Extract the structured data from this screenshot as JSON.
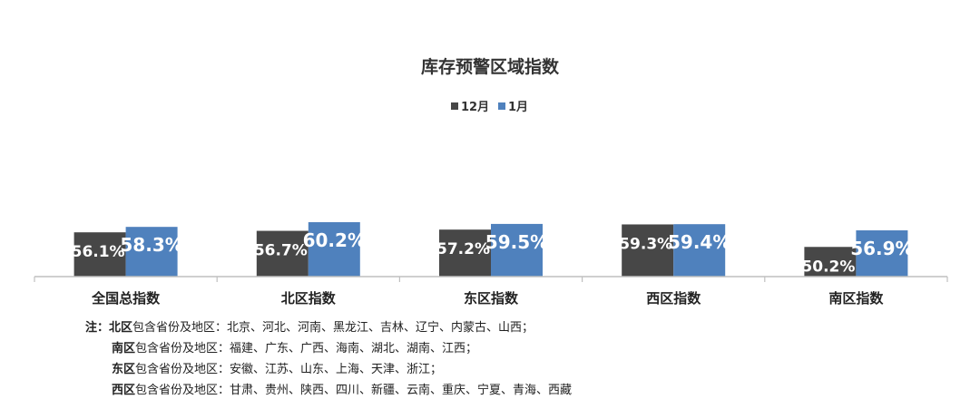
{
  "chart_data": {
    "type": "bar",
    "title": "库存预警区域指数",
    "categories": [
      "全国总指数",
      "北区指数",
      "东区指数",
      "西区指数",
      "南区指数"
    ],
    "series": [
      {
        "name": "12月",
        "color": "#474747",
        "values": [
          56.1,
          56.7,
          57.2,
          59.3,
          50.2
        ],
        "labels": [
          "56.1%",
          "56.7%",
          "57.2%",
          "59.3%",
          "50.2%"
        ]
      },
      {
        "name": "1月",
        "color": "#4f81bd",
        "values": [
          58.3,
          60.2,
          59.5,
          59.4,
          56.9
        ],
        "labels": [
          "58.3%",
          "60.2%",
          "59.5%",
          "59.4%",
          "56.9%"
        ]
      }
    ],
    "legend_position": "top",
    "xlabel": "",
    "ylabel": "",
    "grid": false
  },
  "notes": {
    "prefix": "注：",
    "lines": [
      {
        "region": "北区",
        "text": "包含省份及地区：北京、河北、河南、黑龙江、吉林、辽宁、内蒙古、山西；"
      },
      {
        "region": "南区",
        "text": "包含省份及地区：福建、广东、广西、海南、湖北、湖南、江西；"
      },
      {
        "region": "东区",
        "text": "包含省份及地区：安徽、江苏、山东、上海、天津、浙江；"
      },
      {
        "region": "西区",
        "text": "包含省份及地区：甘肃、贵州、陕西、四川、新疆、云南、重庆、宁夏、青海、西藏"
      }
    ]
  }
}
